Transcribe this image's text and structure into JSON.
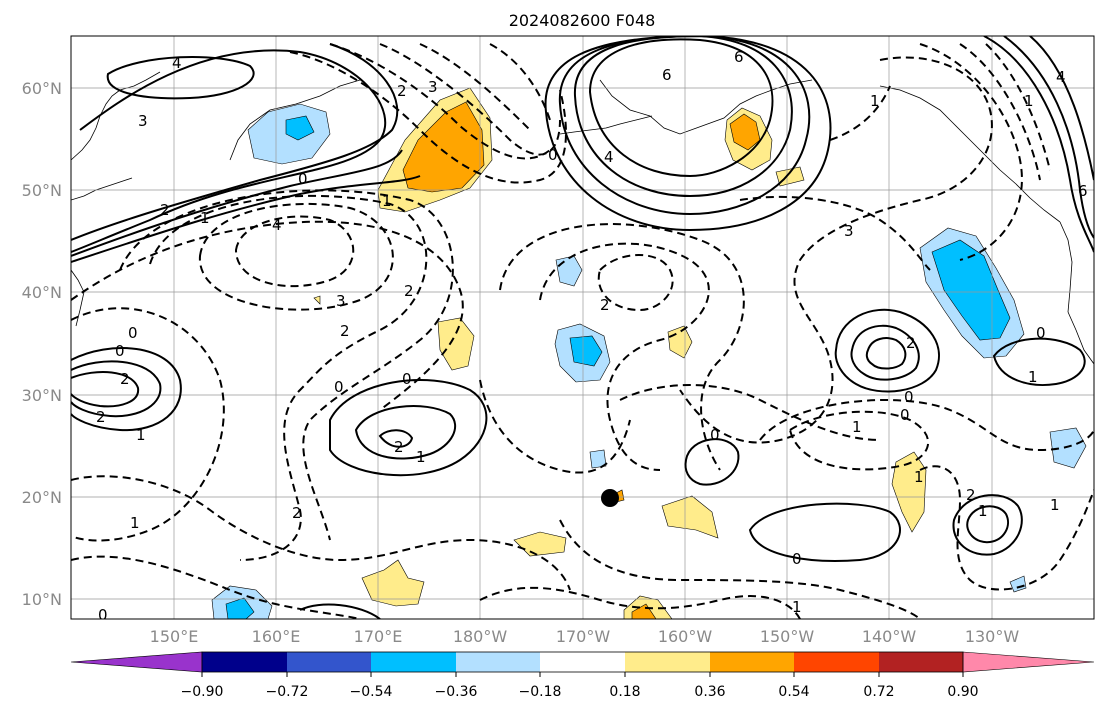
{
  "title": "2024082600 F048",
  "latitude_labels": [
    "60°N",
    "50°N",
    "40°N",
    "30°N",
    "20°N",
    "10°N"
  ],
  "longitude_labels": [
    "150°E",
    "160°E",
    "170°E",
    "180°W",
    "170°W",
    "160°W",
    "150°W",
    "140°W",
    "130°W"
  ],
  "colorbar": {
    "tick_labels": [
      "−0.90",
      "−0.72",
      "−0.54",
      "−0.36",
      "−0.18",
      "0.18",
      "0.36",
      "0.54",
      "0.72",
      "0.90"
    ],
    "colors": [
      "#9933cc",
      "#00008b",
      "#3355cc",
      "#00bfff",
      "#b3e0ff",
      "#ffffff",
      "#ffec8b",
      "#ffa500",
      "#ff4500",
      "#b22222",
      "#ff88aa"
    ]
  },
  "shading_colors": {
    "light_blue": "#b3e0ff",
    "blue": "#00bfff",
    "light_yellow": "#ffec8b",
    "orange": "#ffa500"
  },
  "contour_labels": [
    "4",
    "3",
    "2",
    "2",
    "1",
    "0",
    "4",
    "3",
    "2",
    "1",
    "0",
    "0",
    "4",
    "6",
    "6",
    "2",
    "0",
    "3",
    "2",
    "1",
    "0",
    "0",
    "2",
    "2",
    "1",
    "0",
    "2",
    "2",
    "1",
    "0",
    "3",
    "2",
    "1",
    "0",
    "0",
    "1",
    "0",
    "1",
    "1",
    "1",
    "1",
    "6",
    "4",
    "1",
    "0",
    "1",
    "2"
  ],
  "marker": "storm-center-dot"
}
